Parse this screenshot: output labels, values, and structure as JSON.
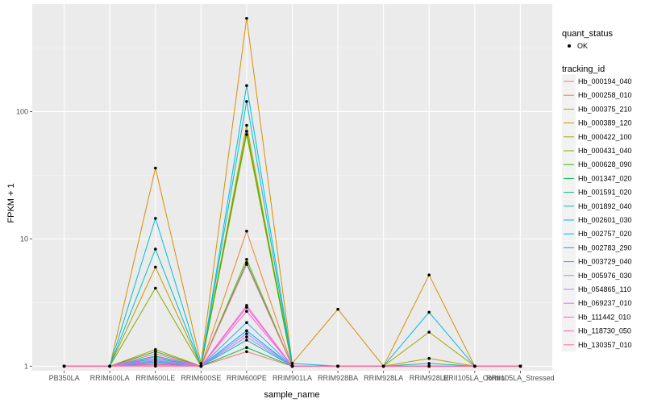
{
  "chart_data": {
    "type": "line",
    "xlabel": "sample_name",
    "ylabel": "FPKM + 1",
    "y_scale": "log10",
    "ylim": [
      0.92,
      700
    ],
    "y_ticks": [
      1,
      10,
      100
    ],
    "grid": true,
    "legend_placement": "right",
    "categories": [
      "PB350LA",
      "RRIM600LA",
      "RRIM600LE",
      "RRIM600SE",
      "RRIM600PE",
      "RRIM901LA",
      "RRIM928BA",
      "RRIM928LA",
      "RRIM928LE",
      "RRII105LA_Control",
      "RRII105LA_Stressed"
    ],
    "quant_status": {
      "title": "quant_status",
      "entries": [
        {
          "label": "OK"
        }
      ]
    },
    "tracking_title": "tracking_id",
    "series": [
      {
        "name": "Hb_000194_040",
        "color": "#F8766D",
        "values": [
          1,
          1,
          1.02,
          1.0,
          1.3,
          1.0,
          1,
          1,
          1,
          1,
          1
        ]
      },
      {
        "name": "Hb_000258_010",
        "color": "#EA8331",
        "values": [
          1,
          1,
          1.05,
          1.0,
          11.5,
          1.0,
          1,
          1,
          1,
          1,
          1
        ]
      },
      {
        "name": "Hb_000375_210",
        "color": "#D89000",
        "values": [
          1,
          1,
          36,
          1.05,
          540,
          1.05,
          2.8,
          1,
          5.2,
          1,
          1
        ]
      },
      {
        "name": "Hb_000389_120",
        "color": "#C09B00",
        "values": [
          1,
          1,
          6,
          1.0,
          78,
          1.0,
          1,
          1,
          1.15,
          1,
          1
        ]
      },
      {
        "name": "Hb_000422_100",
        "color": "#A3A500",
        "values": [
          1,
          1,
          1.35,
          1.0,
          66,
          1.0,
          1,
          1,
          1.85,
          1,
          1
        ]
      },
      {
        "name": "Hb_000431_040",
        "color": "#7CAE00",
        "values": [
          1,
          1,
          4.1,
          1.0,
          6.9,
          1.0,
          1,
          1,
          1,
          1,
          1
        ]
      },
      {
        "name": "Hb_000628_090",
        "color": "#39B600",
        "values": [
          1,
          1,
          1.3,
          1.0,
          70,
          1.0,
          1,
          1,
          1,
          1,
          1
        ]
      },
      {
        "name": "Hb_001347_020",
        "color": "#00BB4E",
        "values": [
          1,
          1,
          1.1,
          1.0,
          1.4,
          1.0,
          1,
          1,
          1,
          1,
          1
        ]
      },
      {
        "name": "Hb_001591_020",
        "color": "#00BF7D",
        "values": [
          1,
          1,
          1.15,
          1.0,
          6.5,
          1.0,
          1,
          1,
          1,
          1,
          1
        ]
      },
      {
        "name": "Hb_001892_040",
        "color": "#00C1A3",
        "values": [
          1,
          1,
          1.2,
          1.0,
          1.6,
          1.0,
          1,
          1,
          1,
          1,
          1
        ]
      },
      {
        "name": "Hb_002601_030",
        "color": "#00BFC4",
        "values": [
          1,
          1,
          8.3,
          1.0,
          120,
          1.0,
          1,
          1,
          1.05,
          1,
          1
        ]
      },
      {
        "name": "Hb_002757_020",
        "color": "#00BAE0",
        "values": [
          1,
          1,
          14.5,
          1.0,
          160,
          1.05,
          1,
          1,
          2.65,
          1,
          1
        ]
      },
      {
        "name": "Hb_002783_290",
        "color": "#00B0F6",
        "values": [
          1,
          1,
          1.08,
          1.0,
          1.9,
          1.0,
          1,
          1,
          1,
          1,
          1
        ]
      },
      {
        "name": "Hb_003729_040",
        "color": "#35A2FF",
        "values": [
          1,
          1,
          1.05,
          1.0,
          2.2,
          1.0,
          1,
          1,
          1,
          1,
          1
        ]
      },
      {
        "name": "Hb_005976_030",
        "color": "#9590FF",
        "values": [
          1,
          1,
          1.1,
          1.0,
          1.8,
          1.0,
          1,
          1,
          1,
          1,
          1
        ]
      },
      {
        "name": "Hb_054865_110",
        "color": "#C77CFF",
        "values": [
          1,
          1,
          1.12,
          1.0,
          1.7,
          1.0,
          1,
          1,
          1,
          1,
          1
        ]
      },
      {
        "name": "Hb_069237_010",
        "color": "#E76BF3",
        "values": [
          1,
          1,
          1.18,
          1.0,
          3.0,
          1.0,
          1,
          1,
          1,
          1,
          1
        ]
      },
      {
        "name": "Hb_111442_010",
        "color": "#FA62DB",
        "values": [
          1,
          1,
          1.25,
          1.0,
          2.7,
          1.0,
          1,
          1,
          1,
          1,
          1
        ]
      },
      {
        "name": "Hb_118730_050",
        "color": "#FF62BC",
        "values": [
          1,
          1,
          1.04,
          1.0,
          2.9,
          1.0,
          1,
          1,
          1,
          1,
          1
        ]
      },
      {
        "name": "Hb_130357_010",
        "color": "#FF6C91",
        "values": [
          1,
          1,
          1.0,
          1.0,
          6.3,
          1.0,
          1,
          1,
          1,
          1,
          1
        ]
      }
    ]
  }
}
